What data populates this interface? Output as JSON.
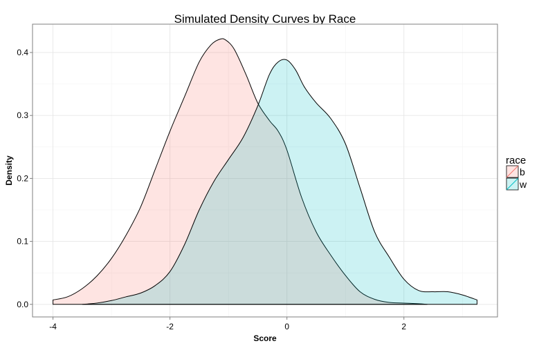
{
  "chart_data": {
    "type": "area",
    "title": "Simulated Density Curves by Race",
    "xlabel": "Score",
    "ylabel": "Density",
    "xlim": [
      -4.35,
      3.6
    ],
    "ylim": [
      -0.02,
      0.445
    ],
    "x_ticks": [
      -4,
      -2,
      0,
      2
    ],
    "y_ticks": [
      0.0,
      0.1,
      0.2,
      0.3,
      0.4
    ],
    "x_tick_labels": [
      "-4",
      "-2",
      "0",
      "2"
    ],
    "y_tick_labels": [
      "0.0",
      "0.1",
      "0.2",
      "0.3",
      "0.4"
    ],
    "grid": true,
    "legend": {
      "title": "race",
      "position": "right"
    },
    "series": [
      {
        "name": "b",
        "color": "#F8766D",
        "x": [
          -4.0,
          -3.75,
          -3.5,
          -3.25,
          -3.0,
          -2.75,
          -2.5,
          -2.25,
          -2.0,
          -1.75,
          -1.5,
          -1.3,
          -1.15,
          -1.05,
          -0.9,
          -0.7,
          -0.5,
          -0.3,
          -0.15,
          0.0,
          0.25,
          0.5,
          0.75,
          1.0,
          1.25,
          1.5,
          1.75,
          2.0,
          2.25,
          2.4
        ],
        "values": [
          0.007,
          0.012,
          0.025,
          0.045,
          0.073,
          0.11,
          0.155,
          0.215,
          0.275,
          0.33,
          0.385,
          0.412,
          0.421,
          0.42,
          0.405,
          0.365,
          0.32,
          0.292,
          0.275,
          0.245,
          0.17,
          0.115,
          0.078,
          0.046,
          0.02,
          0.008,
          0.003,
          0.002,
          0.001,
          0.0
        ]
      },
      {
        "name": "w",
        "color": "#00BFC4",
        "x": [
          -3.5,
          -3.25,
          -3.0,
          -2.75,
          -2.5,
          -2.25,
          -2.0,
          -1.75,
          -1.5,
          -1.25,
          -1.0,
          -0.75,
          -0.5,
          -0.3,
          -0.15,
          0.0,
          0.15,
          0.3,
          0.5,
          0.75,
          1.0,
          1.25,
          1.5,
          1.75,
          2.0,
          2.25,
          2.5,
          2.75,
          3.0,
          3.25
        ],
        "values": [
          0.0,
          0.002,
          0.006,
          0.012,
          0.018,
          0.03,
          0.052,
          0.095,
          0.15,
          0.195,
          0.23,
          0.265,
          0.315,
          0.365,
          0.385,
          0.388,
          0.372,
          0.345,
          0.32,
          0.295,
          0.255,
          0.185,
          0.115,
          0.075,
          0.04,
          0.022,
          0.02,
          0.02,
          0.015,
          0.007
        ]
      }
    ]
  }
}
